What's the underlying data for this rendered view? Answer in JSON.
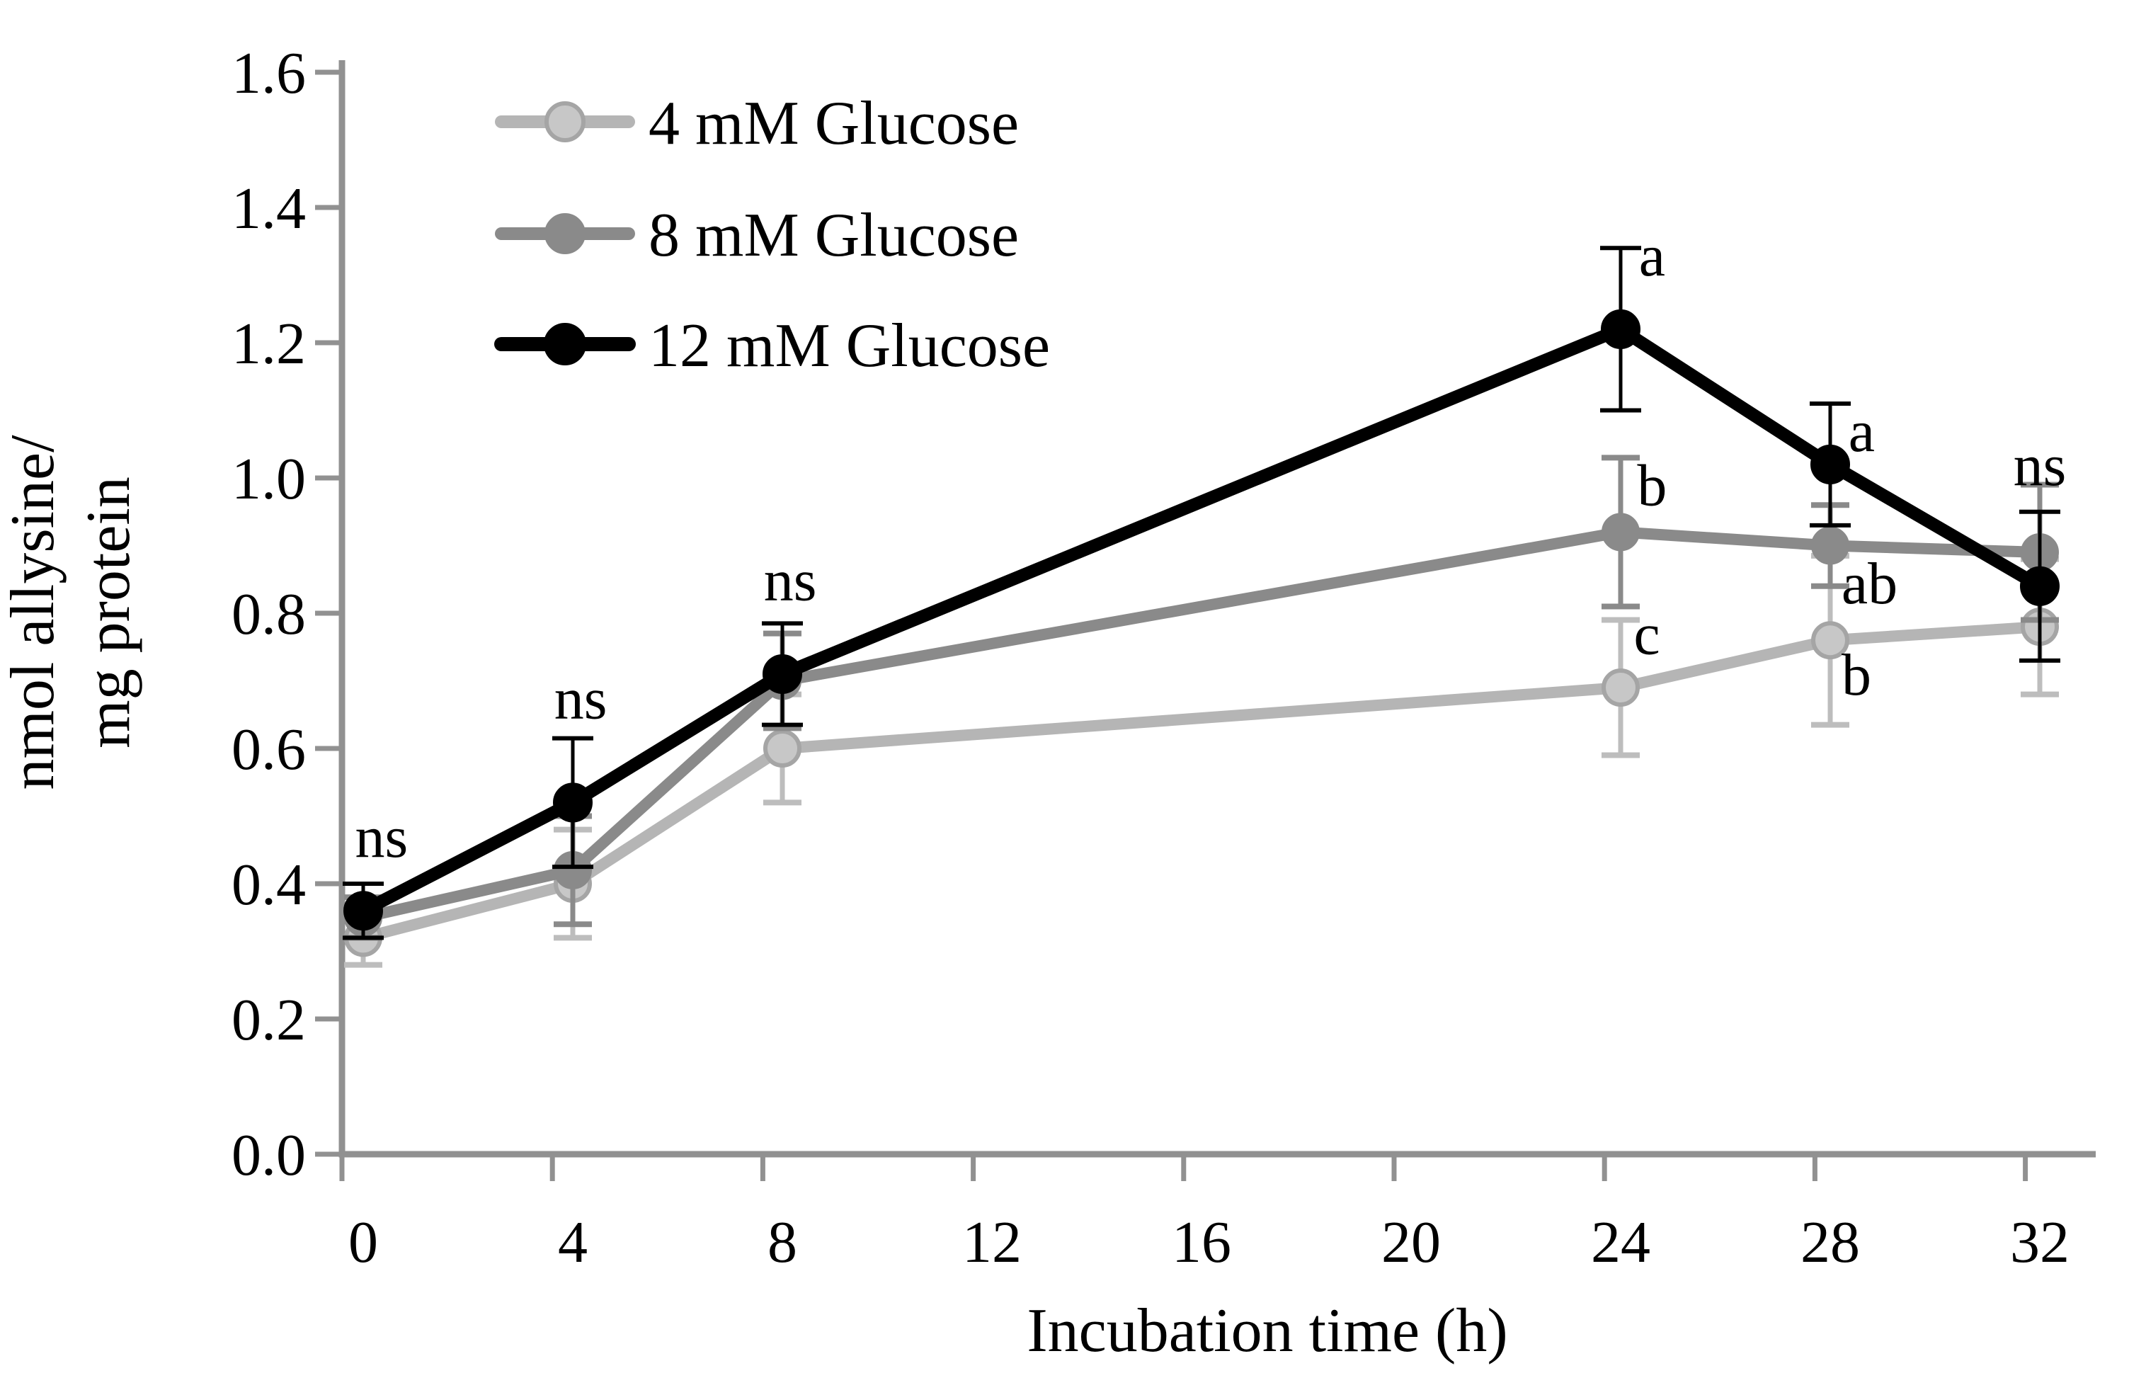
{
  "figure": {
    "background": "#ffffff"
  },
  "chart_data": {
    "type": "line",
    "title": "",
    "xlabel": "Incubation time (h)",
    "ylabel_lines": [
      "nmol allysine/",
      "mg protein"
    ],
    "x": [
      0,
      4,
      8,
      24,
      28,
      32
    ],
    "x_tick_values": [
      0,
      4,
      8,
      12,
      16,
      20,
      24,
      28,
      32
    ],
    "x_tick_labels": [
      "0",
      "4",
      "8",
      "12",
      "16",
      "20",
      "24",
      "28",
      "32"
    ],
    "xlim": [
      0,
      32
    ],
    "y_tick_values": [
      0,
      0.2,
      0.4,
      0.6,
      0.8,
      1.0,
      1.2,
      1.4,
      1.6
    ],
    "y_tick_labels": [
      "0.0",
      "0.2",
      "0.4",
      "0.6",
      "0.8",
      "1.0",
      "1.2",
      "1.4",
      "1.6"
    ],
    "ylim": [
      0,
      1.6
    ],
    "grid": false,
    "legend_position": "top-left-inside",
    "axis_color": "#919191",
    "text_color": "#000000",
    "series": [
      {
        "name": "4 mM Glucose",
        "values": [
          0.32,
          0.4,
          0.6,
          0.69,
          0.76,
          0.78
        ],
        "errors": [
          0.04,
          0.08,
          0.08,
          0.1,
          0.125,
          0.1
        ],
        "line_color": "#b5b5b5",
        "marker_fill": "#c7c7c7",
        "marker_stroke": "#a5a5a5",
        "error_color": "#bdbdbd",
        "line_width": 16,
        "marker_radius": 24,
        "marker_stroke_width": 6,
        "error_line_width": 7,
        "cap_half_width": 27,
        "cap_line_width": 8
      },
      {
        "name": "8 mM Glucose",
        "values": [
          0.35,
          0.42,
          0.7,
          0.92,
          0.9,
          0.89
        ],
        "errors": [
          0.03,
          0.08,
          0.07,
          0.11,
          0.06,
          0.1
        ],
        "line_color": "#8a8a8a",
        "marker_fill": "#8a8a8a",
        "marker_stroke": "#8a8a8a",
        "error_color": "#8a8a8a",
        "line_width": 16,
        "marker_radius": 25,
        "marker_stroke_width": 4,
        "error_line_width": 7,
        "cap_half_width": 27,
        "cap_line_width": 8
      },
      {
        "name": "12 mM Glucose",
        "values": [
          0.36,
          0.52,
          0.71,
          1.22,
          1.02,
          0.84
        ],
        "errors": [
          0.04,
          0.095,
          0.075,
          0.12,
          0.09,
          0.11
        ],
        "line_color": "#000000",
        "marker_fill": "#000000",
        "marker_stroke": "#000000",
        "error_color": "#000000",
        "line_width": 18,
        "marker_radius": 26,
        "marker_stroke_width": 4,
        "error_line_width": 5,
        "cap_half_width": 29,
        "cap_line_width": 6
      }
    ],
    "annotations": [
      {
        "text": "ns",
        "x": 0.35,
        "y": 0.47
      },
      {
        "text": "ns",
        "x": 4.15,
        "y": 0.675
      },
      {
        "text": "ns",
        "x": 8.15,
        "y": 0.85
      },
      {
        "text": "a",
        "x": 24.6,
        "y": 1.33
      },
      {
        "text": "b",
        "x": 24.6,
        "y": 0.99
      },
      {
        "text": "c",
        "x": 24.5,
        "y": 0.77
      },
      {
        "text": "a",
        "x": 28.6,
        "y": 1.07
      },
      {
        "text": "ab",
        "x": 28.75,
        "y": 0.845
      },
      {
        "text": "b",
        "x": 28.5,
        "y": 0.71
      },
      {
        "text": "ns",
        "x": 32.0,
        "y": 1.02
      }
    ]
  }
}
